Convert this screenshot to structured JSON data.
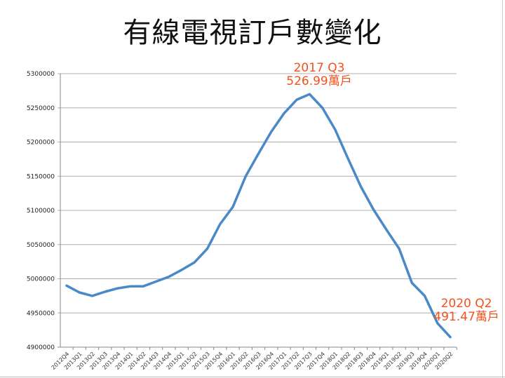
{
  "title": "有線電視訂戶數變化",
  "colors": {
    "line": "#4a89c8",
    "annotation": "#f4511e",
    "grid": "#b0b0b0"
  },
  "annotations": [
    {
      "line1": "2017 Q3",
      "line2": "526.99萬戶"
    },
    {
      "line1": "2020 Q2",
      "line2": "491.47萬戶"
    }
  ],
  "chart_data": {
    "type": "line",
    "title": "有線電視訂戶數變化",
    "xlabel": "",
    "ylabel": "",
    "ylim": [
      4900000,
      5300000
    ],
    "yticks": [
      4900000,
      4950000,
      5000000,
      5050000,
      5100000,
      5150000,
      5200000,
      5250000,
      5300000
    ],
    "grid": true,
    "legend": null,
    "categories": [
      "2012Q4",
      "2013Q1",
      "2013Q2",
      "2013Q3",
      "2013Q4",
      "2014Q1",
      "2014Q2",
      "2014Q3",
      "2014Q4",
      "2015Q1",
      "2015Q2",
      "2015Q3",
      "2015Q4",
      "2016Q1",
      "2016Q2",
      "2016Q3",
      "2016Q4",
      "2017Q1",
      "2017Q2",
      "2017Q3",
      "2017Q4",
      "2018Q1",
      "2018Q2",
      "2018Q3",
      "2018Q4",
      "2019Q1",
      "2019Q2",
      "2019Q3",
      "2019Q4",
      "2020Q1",
      "2020Q2"
    ],
    "series": [
      {
        "name": "有線電視訂戶數",
        "values": [
          4990000,
          4980000,
          4975000,
          4981000,
          4986000,
          4989000,
          4989000,
          4996000,
          5003000,
          5013000,
          5024000,
          5044000,
          5080000,
          5105000,
          5150000,
          5183000,
          5215000,
          5242000,
          5262000,
          5269900,
          5250000,
          5218000,
          5176000,
          5135000,
          5101000,
          5072000,
          5044000,
          4994000,
          4975000,
          4935000,
          4914700
        ]
      }
    ],
    "annotations": [
      "2017 Q3 526.99萬戶",
      "2020 Q2 491.47萬戶"
    ]
  }
}
